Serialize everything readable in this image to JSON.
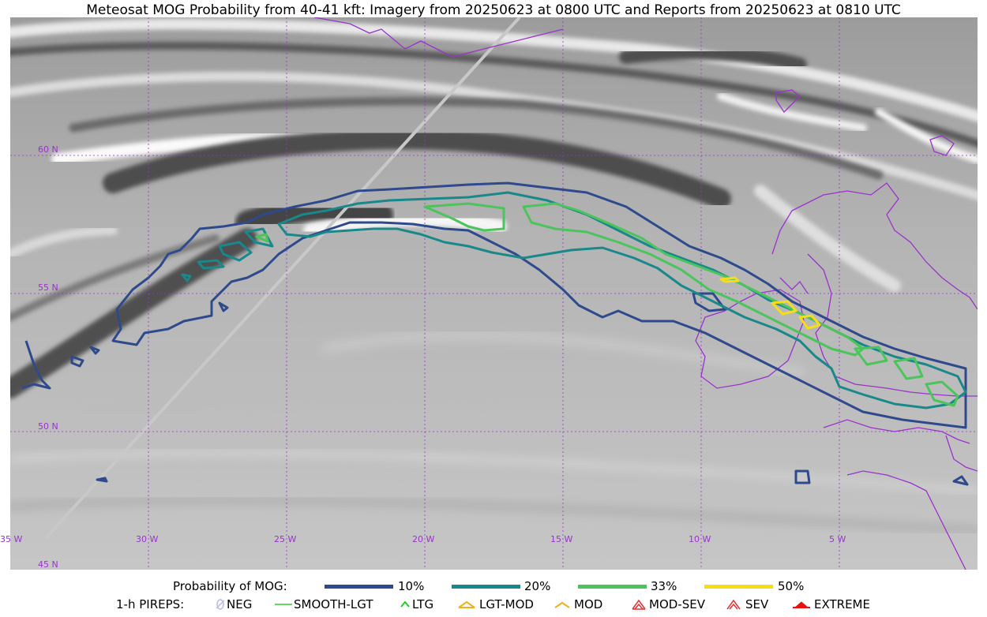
{
  "title": "Meteosat MOG Probability from 40-41 kft: Imagery from 20250623 at 0800 UTC and Reports from 20250623 at 0810 UTC",
  "map": {
    "lat_labels": [
      "60 N",
      "55 N",
      "50 N",
      "45 N"
    ],
    "lon_labels": [
      "35 W",
      "30 W",
      "25 W",
      "20 W",
      "15 W",
      "10 W",
      "5 W"
    ],
    "grid_color": "#9933cc",
    "coast_color": "#9933cc",
    "contour_colors": {
      "p10": "#2e4a8c",
      "p20": "#18888a",
      "p33": "#4cc45c",
      "p50": "#f5dd1a"
    }
  },
  "legend": {
    "probability_label": "Probability of MOG:",
    "probability_items": [
      {
        "label": "10%",
        "color": "#2e4a8c"
      },
      {
        "label": "20%",
        "color": "#18888a"
      },
      {
        "label": "33%",
        "color": "#4cc45c"
      },
      {
        "label": "50%",
        "color": "#f5dd1a"
      }
    ],
    "pireps_label": "1-h PIREPS:",
    "pirep_items": [
      {
        "label": "NEG",
        "icon": "neg-icon",
        "color": "#b8b8f0"
      },
      {
        "label": "SMOOTH-LGT",
        "icon": "smooth-lgt-icon",
        "color": "#33cc33"
      },
      {
        "label": "LTG",
        "icon": "ltg-icon",
        "color": "#22cc22"
      },
      {
        "label": "LGT-MOD",
        "icon": "lgt-mod-icon",
        "color": "#f0b020"
      },
      {
        "label": "MOD",
        "icon": "mod-icon",
        "color": "#f0b020"
      },
      {
        "label": "MOD-SEV",
        "icon": "mod-sev-icon",
        "color": "#e83030"
      },
      {
        "label": "SEV",
        "icon": "sev-icon",
        "color": "#e83030"
      },
      {
        "label": "EXTREME",
        "icon": "extreme-icon",
        "color": "#e81010"
      }
    ]
  }
}
